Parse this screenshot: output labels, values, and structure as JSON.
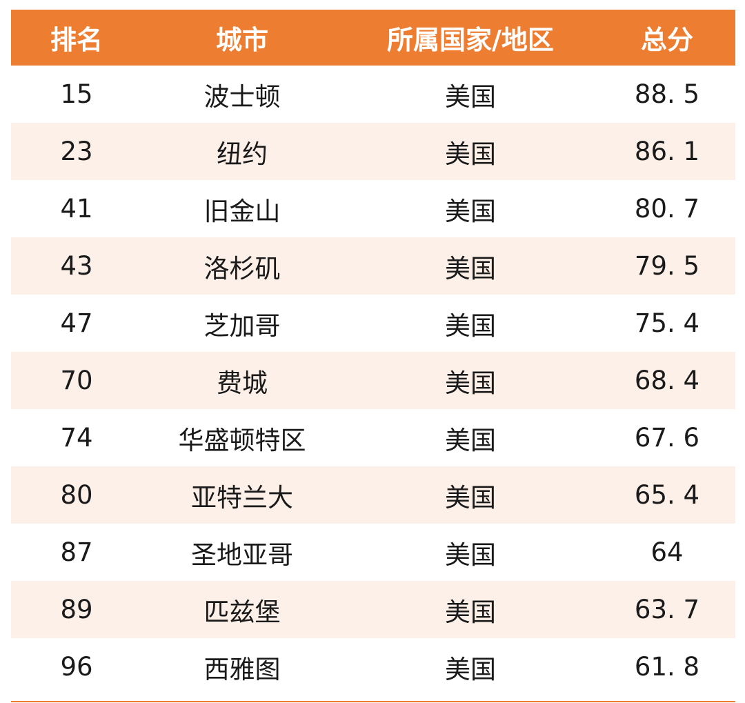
{
  "table": {
    "headers": [
      "排名",
      "城市",
      "所属国家/地区",
      "总分"
    ],
    "rows": [
      {
        "rank": "15",
        "city": "波士顿",
        "country": "美国",
        "score": "88. 5"
      },
      {
        "rank": "23",
        "city": "纽约",
        "country": "美国",
        "score": "86. 1"
      },
      {
        "rank": "41",
        "city": "旧金山",
        "country": "美国",
        "score": "80. 7"
      },
      {
        "rank": "43",
        "city": "洛杉矶",
        "country": "美国",
        "score": "79. 5"
      },
      {
        "rank": "47",
        "city": "芝加哥",
        "country": "美国",
        "score": "75. 4"
      },
      {
        "rank": "70",
        "city": "费城",
        "country": "美国",
        "score": "68. 4"
      },
      {
        "rank": "74",
        "city": "华盛顿特区",
        "country": "美国",
        "score": "67. 6"
      },
      {
        "rank": "80",
        "city": "亚特兰大",
        "country": "美国",
        "score": "65. 4"
      },
      {
        "rank": "87",
        "city": "圣地亚哥",
        "country": "美国",
        "score": "64"
      },
      {
        "rank": "89",
        "city": "匹兹堡",
        "country": "美国",
        "score": "63. 7"
      },
      {
        "rank": "96",
        "city": "西雅图",
        "country": "美国",
        "score": "61. 8"
      }
    ]
  },
  "colors": {
    "header_bg": "#ED7D31",
    "alt_row_bg": "#FDF0E8",
    "rule": "#ED7D31"
  }
}
